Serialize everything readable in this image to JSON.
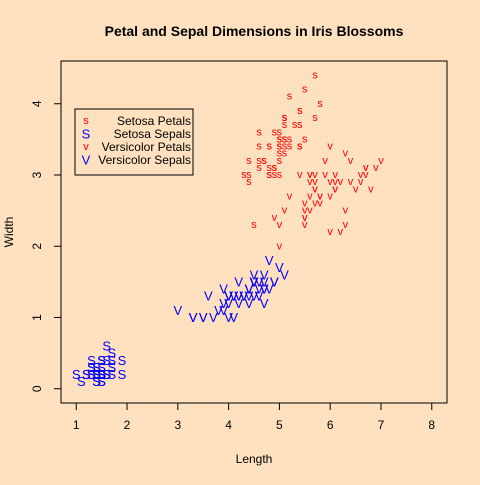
{
  "chart_data": {
    "type": "scatter",
    "title": "Petal and Sepal Dimensions in Iris Blossoms",
    "xlabel": "Length",
    "ylabel": "Width",
    "xlim": [
      0.7,
      8.3
    ],
    "ylim": [
      -0.2,
      4.6
    ],
    "x_ticks": [
      1,
      2,
      3,
      4,
      5,
      6,
      7,
      8
    ],
    "y_ticks": [
      0,
      1,
      2,
      3,
      4
    ],
    "grid": false,
    "legend_position": "top-left",
    "series": [
      {
        "name": "Setosa Petals",
        "symbol": "s",
        "color": "#FF0000",
        "x": [
          5.1,
          4.9,
          4.7,
          4.6,
          5.0,
          5.4,
          4.6,
          5.0,
          4.4,
          4.9,
          5.4,
          4.8,
          4.8,
          4.3,
          5.8,
          5.7,
          5.4,
          5.1,
          5.7,
          5.1,
          5.4,
          5.1,
          4.6,
          5.1,
          4.8,
          5.0,
          5.0,
          5.2,
          5.2,
          4.7,
          4.8,
          5.4,
          5.2,
          5.5,
          4.9,
          5.0,
          5.5,
          4.9,
          4.4,
          5.1,
          5.0,
          4.5,
          4.4,
          5.0,
          5.1,
          4.8,
          5.1,
          4.6,
          5.3,
          5.0
        ],
        "y": [
          3.5,
          3.0,
          3.2,
          3.1,
          3.6,
          3.9,
          3.4,
          3.4,
          2.9,
          3.1,
          3.7,
          3.4,
          3.0,
          3.0,
          4.0,
          4.4,
          3.9,
          3.5,
          3.8,
          3.8,
          3.4,
          3.7,
          3.6,
          3.3,
          3.4,
          3.0,
          3.4,
          3.5,
          3.4,
          3.2,
          3.1,
          3.4,
          4.1,
          4.2,
          3.1,
          3.2,
          3.5,
          3.6,
          3.0,
          3.4,
          3.5,
          2.3,
          3.2,
          3.5,
          3.8,
          3.0,
          3.8,
          3.2,
          3.7,
          3.3
        ]
      },
      {
        "name": "Setosa Sepals",
        "symbol": "S",
        "color": "#0000FF",
        "x": [
          1.4,
          1.4,
          1.3,
          1.5,
          1.4,
          1.7,
          1.4,
          1.5,
          1.4,
          1.5,
          1.5,
          1.6,
          1.4,
          1.1,
          1.2,
          1.5,
          1.3,
          1.4,
          1.7,
          1.5,
          1.7,
          1.5,
          1.0,
          1.7,
          1.9,
          1.6,
          1.6,
          1.5,
          1.4,
          1.6,
          1.6,
          1.5,
          1.5,
          1.4,
          1.5,
          1.2,
          1.3,
          1.4,
          1.3,
          1.5,
          1.3,
          1.3,
          1.3,
          1.6,
          1.9,
          1.4,
          1.6,
          1.4,
          1.5,
          1.4
        ],
        "y": [
          0.2,
          0.2,
          0.2,
          0.2,
          0.2,
          0.4,
          0.3,
          0.2,
          0.2,
          0.1,
          0.2,
          0.2,
          0.1,
          0.1,
          0.2,
          0.4,
          0.4,
          0.3,
          0.3,
          0.3,
          0.2,
          0.4,
          0.2,
          0.5,
          0.2,
          0.2,
          0.4,
          0.2,
          0.2,
          0.2,
          0.2,
          0.4,
          0.1,
          0.2,
          0.2,
          0.2,
          0.2,
          0.1,
          0.2,
          0.2,
          0.3,
          0.3,
          0.2,
          0.6,
          0.4,
          0.3,
          0.2,
          0.2,
          0.2,
          0.2
        ]
      },
      {
        "name": "Versicolor Petals",
        "symbol": "v",
        "color": "#FF0000",
        "x": [
          7.0,
          6.4,
          6.9,
          5.5,
          6.5,
          5.7,
          6.3,
          4.9,
          6.6,
          5.2,
          5.0,
          5.9,
          6.0,
          6.1,
          5.6,
          6.7,
          5.6,
          5.8,
          6.2,
          5.6,
          5.9,
          6.1,
          6.3,
          6.1,
          6.4,
          6.6,
          6.8,
          6.7,
          6.0,
          5.7,
          5.5,
          5.5,
          5.8,
          6.0,
          5.4,
          6.0,
          6.7,
          6.3,
          5.6,
          5.5,
          5.5,
          6.1,
          5.8,
          5.0,
          5.6,
          5.7,
          5.7,
          6.2,
          5.1,
          5.7
        ],
        "y": [
          3.2,
          3.2,
          3.1,
          2.3,
          2.8,
          2.8,
          3.3,
          2.4,
          2.9,
          2.7,
          2.0,
          3.0,
          2.2,
          2.9,
          2.9,
          3.1,
          3.0,
          2.7,
          2.2,
          2.5,
          3.2,
          2.8,
          2.5,
          2.8,
          2.9,
          3.0,
          2.8,
          3.0,
          2.9,
          2.6,
          2.4,
          2.4,
          2.7,
          2.7,
          3.0,
          3.4,
          3.1,
          2.3,
          3.0,
          2.5,
          2.6,
          3.0,
          2.6,
          2.3,
          2.7,
          3.0,
          2.9,
          2.9,
          2.5,
          2.8
        ]
      },
      {
        "name": "Versicolor Sepals",
        "symbol": "V",
        "color": "#0000FF",
        "x": [
          4.7,
          4.5,
          4.9,
          4.0,
          4.6,
          4.5,
          4.7,
          3.3,
          4.6,
          3.9,
          3.5,
          4.2,
          4.0,
          4.7,
          3.6,
          4.4,
          4.5,
          4.1,
          4.5,
          3.9,
          4.8,
          4.0,
          4.9,
          4.7,
          4.3,
          4.4,
          4.8,
          5.0,
          4.5,
          3.5,
          3.8,
          3.7,
          3.9,
          5.1,
          4.5,
          4.5,
          4.7,
          4.4,
          4.1,
          4.0,
          4.4,
          4.6,
          4.0,
          3.3,
          4.2,
          4.2,
          4.2,
          4.3,
          3.0,
          4.1
        ],
        "y": [
          1.4,
          1.5,
          1.5,
          1.3,
          1.5,
          1.3,
          1.6,
          1.0,
          1.3,
          1.4,
          1.0,
          1.5,
          1.0,
          1.4,
          1.3,
          1.4,
          1.5,
          1.0,
          1.5,
          1.1,
          1.8,
          1.3,
          1.5,
          1.2,
          1.3,
          1.4,
          1.4,
          1.7,
          1.5,
          1.0,
          1.1,
          1.0,
          1.2,
          1.6,
          1.5,
          1.6,
          1.5,
          1.3,
          1.3,
          1.3,
          1.2,
          1.4,
          1.2,
          1.0,
          1.3,
          1.2,
          1.3,
          1.3,
          1.1,
          1.3
        ]
      }
    ]
  }
}
